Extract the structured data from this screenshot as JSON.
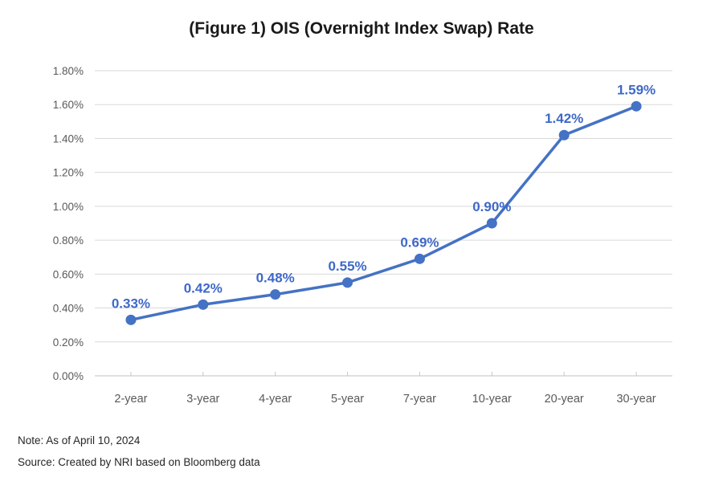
{
  "title": "(Figure 1) OIS (Overnight Index Swap) Rate",
  "notes": {
    "note": "Note: As of April 10, 2024",
    "source": "Source: Created by NRI based on Bloomberg data"
  },
  "colors": {
    "line": "#4472C4",
    "marker": "#4472C4",
    "data_label": "#3E68C8",
    "grid": "#D9D9D9",
    "axis": "#C0C0C0",
    "tick": "#C6C6C6",
    "tick_label": "#595959",
    "title_text": "#1A1A1A",
    "note_text": "#262626",
    "background": "#FFFFFF"
  },
  "chart_data": {
    "type": "line",
    "title": "(Figure 1) OIS (Overnight Index Swap) Rate",
    "categories": [
      "2-year",
      "3-year",
      "4-year",
      "5-year",
      "7-year",
      "10-year",
      "20-year",
      "30-year"
    ],
    "series": [
      {
        "name": "OIS rate",
        "values": [
          0.33,
          0.42,
          0.48,
          0.55,
          0.69,
          0.9,
          1.42,
          1.59
        ]
      }
    ],
    "data_labels": [
      "0.33%",
      "0.42%",
      "0.48%",
      "0.55%",
      "0.69%",
      "0.90%",
      "1.42%",
      "1.59%"
    ],
    "xlabel": "",
    "ylabel": "",
    "ylim": [
      0,
      1.8
    ],
    "ytick_step": 0.2,
    "ytick_labels": [
      "0.00%",
      "0.20%",
      "0.40%",
      "0.60%",
      "0.80%",
      "1.00%",
      "1.20%",
      "1.40%",
      "1.60%",
      "1.80%"
    ],
    "grid": "horizontal",
    "legend": "none",
    "marker": "circle"
  }
}
